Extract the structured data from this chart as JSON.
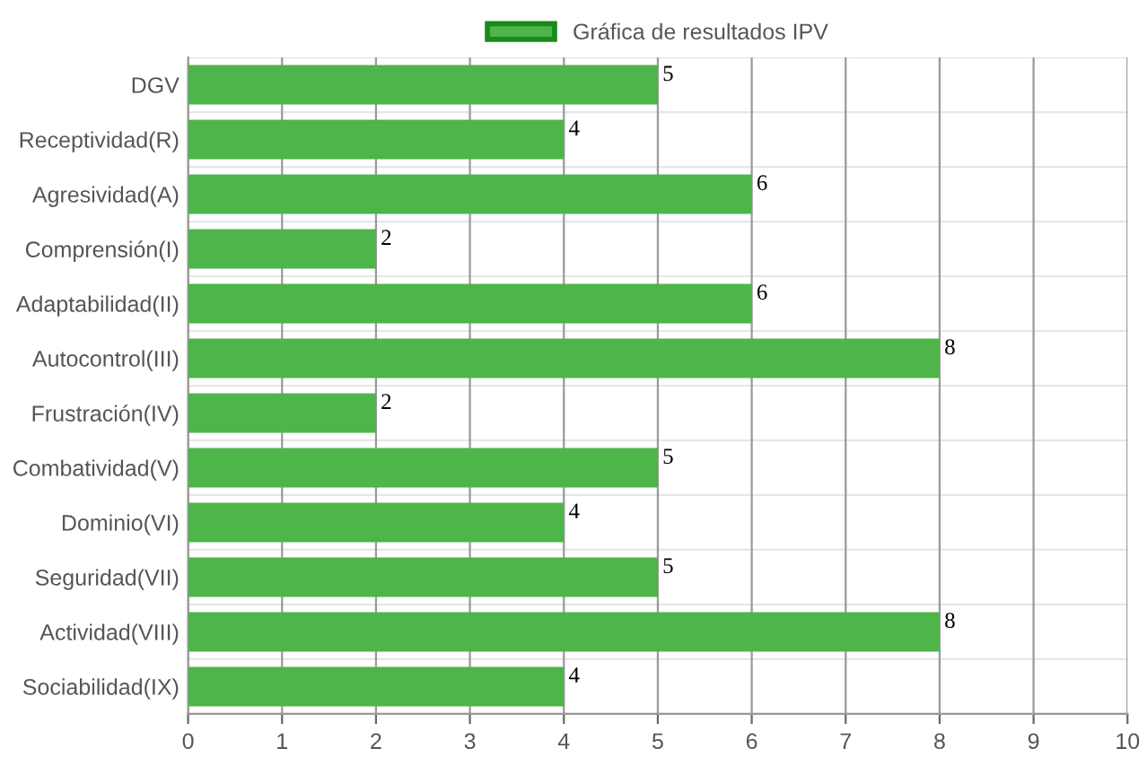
{
  "chart_data": {
    "type": "bar",
    "orientation": "horizontal",
    "categories": [
      "DGV",
      "Receptividad(R)",
      "Agresividad(A)",
      "Comprensión(I)",
      "Adaptabilidad(II)",
      "Autocontrol(III)",
      "Frustración(IV)",
      "Combatividad(V)",
      "Dominio(VI)",
      "Seguridad(VII)",
      "Actividad(VIII)",
      "Sociabilidad(IX)"
    ],
    "series": [
      {
        "name": "Gráfica de resultados IPV",
        "color": "#4db549",
        "values": [
          5,
          4,
          6,
          2,
          6,
          8,
          2,
          5,
          4,
          5,
          8,
          4
        ]
      }
    ],
    "xlim": [
      0,
      10
    ],
    "xticks": [
      0,
      1,
      2,
      3,
      4,
      5,
      6,
      7,
      8,
      9,
      10
    ],
    "grid": true,
    "legend": "top",
    "data_labels": true
  }
}
